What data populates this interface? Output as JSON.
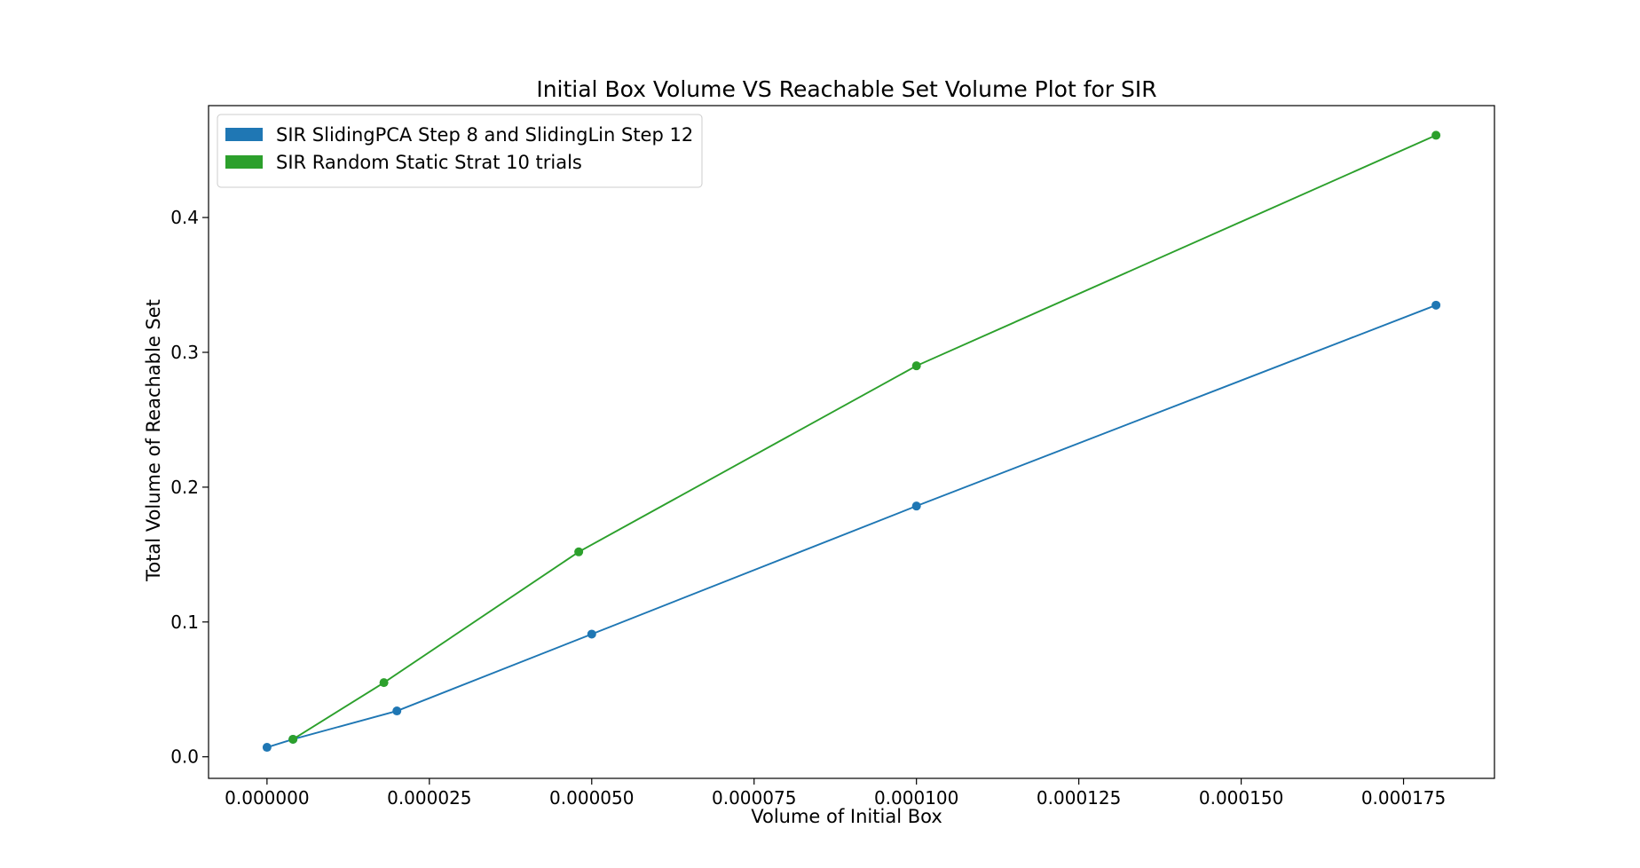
{
  "chart_data": {
    "type": "line",
    "title": "Initial Box Volume VS Reachable Set Volume Plot for SIR",
    "xlabel": "Volume of Initial Box",
    "ylabel": "Total Volume of Reachable Set",
    "xlim": [
      -9e-06,
      0.000189
    ],
    "ylim": [
      -0.016,
      0.483
    ],
    "x_ticks": [
      0.0,
      2.5e-05,
      5e-05,
      7.5e-05,
      0.0001,
      0.000125,
      0.00015,
      0.000175
    ],
    "x_tick_labels": [
      "0.000000",
      "0.000025",
      "0.000050",
      "0.000075",
      "0.000100",
      "0.000125",
      "0.000150",
      "0.000175"
    ],
    "y_ticks": [
      0.0,
      0.1,
      0.2,
      0.3,
      0.4
    ],
    "y_tick_labels": [
      "0.0",
      "0.1",
      "0.2",
      "0.3",
      "0.4"
    ],
    "grid": false,
    "legend_position": "top-left",
    "series": [
      {
        "name": "SIR SlidingPCA Step 8 and SlidingLin Step 12",
        "color": "#1f77b4",
        "x": [
          0.0,
          4e-06,
          2e-05,
          5e-05,
          0.0001,
          0.00018
        ],
        "y": [
          0.007,
          0.013,
          0.034,
          0.091,
          0.186,
          0.335
        ]
      },
      {
        "name": "SIR Random Static  Strat 10 trials",
        "color": "#2ca02c",
        "x": [
          4e-06,
          1.8e-05,
          4.8e-05,
          0.0001,
          0.00018
        ],
        "y": [
          0.013,
          0.055,
          0.152,
          0.29,
          0.461
        ]
      }
    ]
  }
}
